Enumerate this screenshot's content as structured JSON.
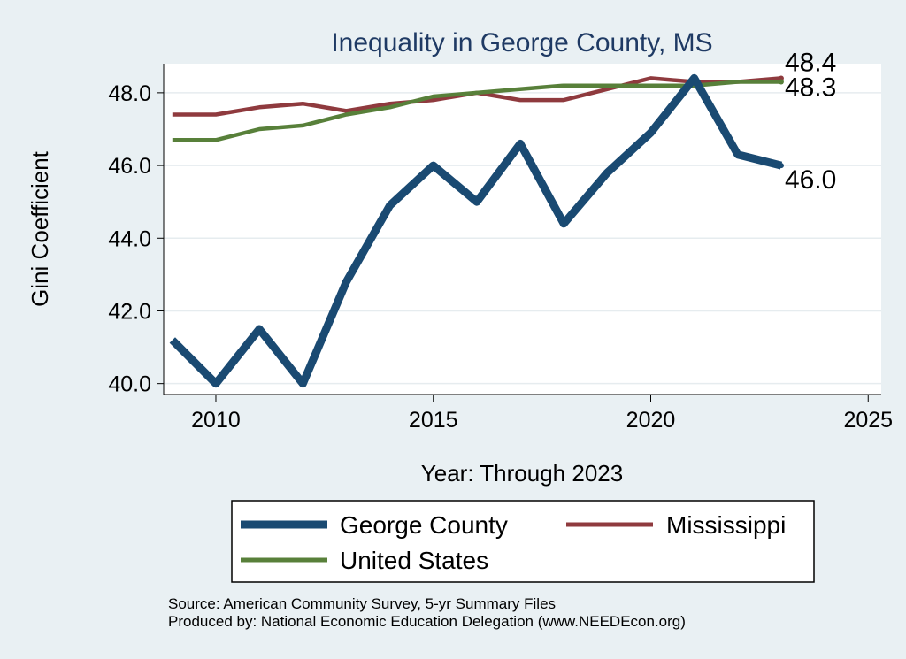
{
  "chart_data": {
    "type": "line",
    "title": "Inequality in George County, MS",
    "xlabel": "Year: Through 2023",
    "ylabel": "Gini Coefficient",
    "xlim": [
      2008.8,
      2025.3
    ],
    "ylim": [
      39.7,
      48.8
    ],
    "xticks": [
      2010,
      2015,
      2020,
      2025
    ],
    "yticks": [
      40.0,
      42.0,
      44.0,
      46.0,
      48.0
    ],
    "grid": true,
    "legend_position": "bottom",
    "x": [
      2009,
      2010,
      2011,
      2012,
      2013,
      2014,
      2015,
      2016,
      2017,
      2018,
      2019,
      2020,
      2021,
      2022,
      2023
    ],
    "series": [
      {
        "name": "George County",
        "color": "#1a4a72",
        "values": [
          41.2,
          40.0,
          41.5,
          40.0,
          42.8,
          44.9,
          46.0,
          45.0,
          46.6,
          44.4,
          45.8,
          46.9,
          48.4,
          46.3,
          46.0
        ],
        "end_label": "46.0"
      },
      {
        "name": "Mississippi",
        "color": "#8f3a3e",
        "values": [
          47.4,
          47.4,
          47.6,
          47.7,
          47.5,
          47.7,
          47.8,
          48.0,
          47.8,
          47.8,
          48.1,
          48.4,
          48.3,
          48.3,
          48.4
        ],
        "end_label": "48.4"
      },
      {
        "name": "United States",
        "color": "#58803a",
        "values": [
          46.7,
          46.7,
          47.0,
          47.1,
          47.4,
          47.6,
          47.9,
          48.0,
          48.1,
          48.2,
          48.2,
          48.2,
          48.2,
          48.3,
          48.3
        ],
        "end_label": "48.3"
      }
    ],
    "legend": [
      "George County",
      "Mississippi",
      "United States"
    ],
    "source_lines": [
      "Source: American Community Survey, 5-yr Summary Files",
      "Produced by: National Economic Education Delegation (www.NEEDEcon.org)"
    ]
  }
}
